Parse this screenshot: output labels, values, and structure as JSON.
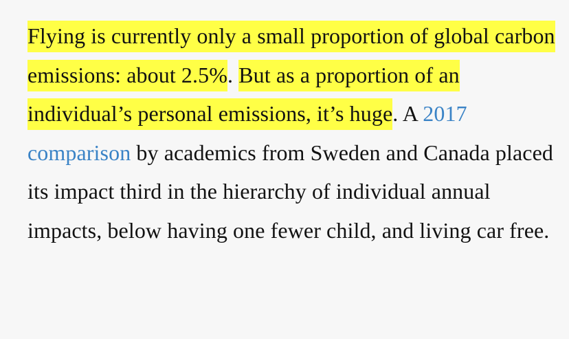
{
  "article": {
    "highlight_1": "Flying is currently only a small proportion of global carbon emissions: about 2.5%",
    "sep_1": ". ",
    "highlight_2": "But as a proportion of an individual’s personal emissions, it’s huge",
    "text_1": ". A ",
    "link_text": "2017 comparison",
    "text_2": " by academics from Sweden and Canada placed its impact third in the hierarchy of individual annual impacts, below having one fewer child, and living car free."
  },
  "colors": {
    "highlight": "#ffff46",
    "link": "#3a83c6",
    "text": "#121212",
    "background": "#f7f7f7"
  }
}
